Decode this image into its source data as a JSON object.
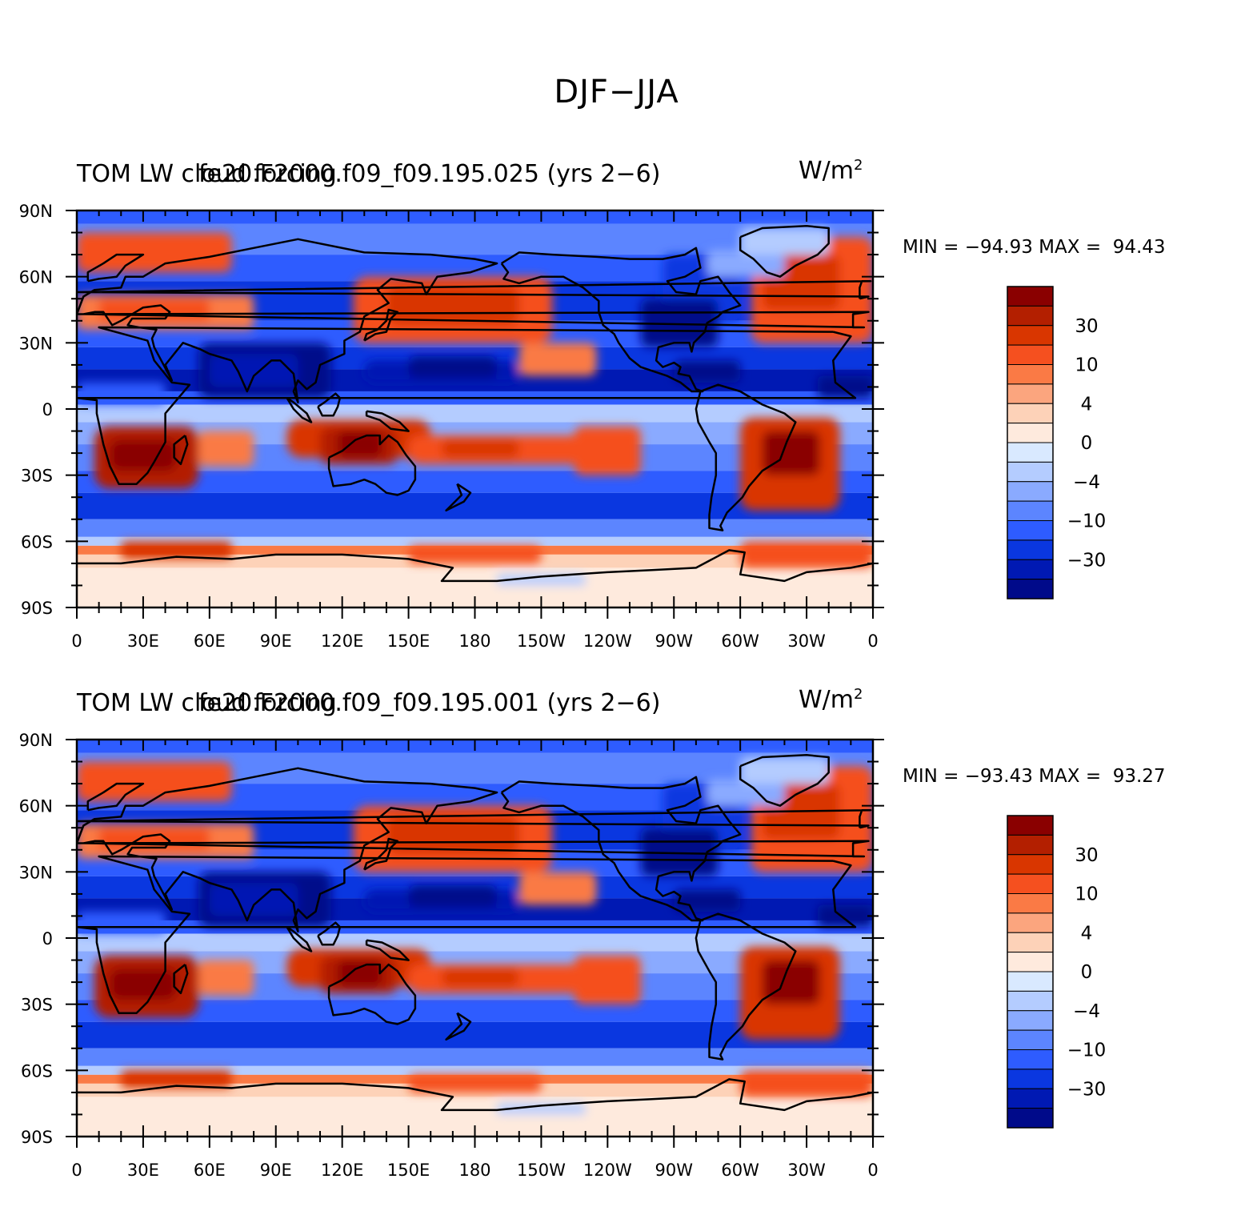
{
  "figure": {
    "title": "DJF−JJA"
  },
  "legend_colors": [
    "#8a0000",
    "#b31f00",
    "#d93600",
    "#f5501f",
    "#fa7a45",
    "#fba57e",
    "#fdd2b8",
    "#feeadd",
    "#d9e9ff",
    "#b4ccff",
    "#8aaaff",
    "#5c85ff",
    "#2e5cff",
    "#0a37e0",
    "#0019b3",
    "#000a8a"
  ],
  "chart_data": [
    {
      "type": "heatmap",
      "title_left": "TOM LW cloud forcing",
      "title_center": "fe20.F2000.f09_f09.195.025 (yrs 2−6)",
      "units": "W/m",
      "units_sup": "2",
      "min_label": "MIN =",
      "min_value": "−94.93",
      "max_label": "MAX =",
      "max_value": "94.43",
      "x_ticks": [
        "0",
        "30E",
        "60E",
        "90E",
        "120E",
        "150E",
        "180",
        "150W",
        "120W",
        "90W",
        "60W",
        "30W",
        "0"
      ],
      "y_ticks": [
        "90N",
        "60N",
        "30N",
        "0",
        "30S",
        "60S",
        "90S"
      ],
      "colorbar_labels": [
        "30",
        "10",
        "4",
        "0",
        "−4",
        "−10",
        "−30"
      ]
    },
    {
      "type": "heatmap",
      "title_left": "TOM LW cloud forcing",
      "title_center": "fe20.F2000.f09_f09.195.001 (yrs 2−6)",
      "units": "W/m",
      "units_sup": "2",
      "min_label": "MIN =",
      "min_value": "−93.43",
      "max_label": "MAX =",
      "max_value": "93.27",
      "x_ticks": [
        "0",
        "30E",
        "60E",
        "90E",
        "120E",
        "150E",
        "180",
        "150W",
        "120W",
        "90W",
        "60W",
        "30W",
        "0"
      ],
      "y_ticks": [
        "90N",
        "60N",
        "30N",
        "0",
        "30S",
        "60S",
        "90S"
      ],
      "colorbar_labels": [
        "30",
        "10",
        "4",
        "0",
        "−4",
        "−10",
        "−30"
      ]
    }
  ]
}
